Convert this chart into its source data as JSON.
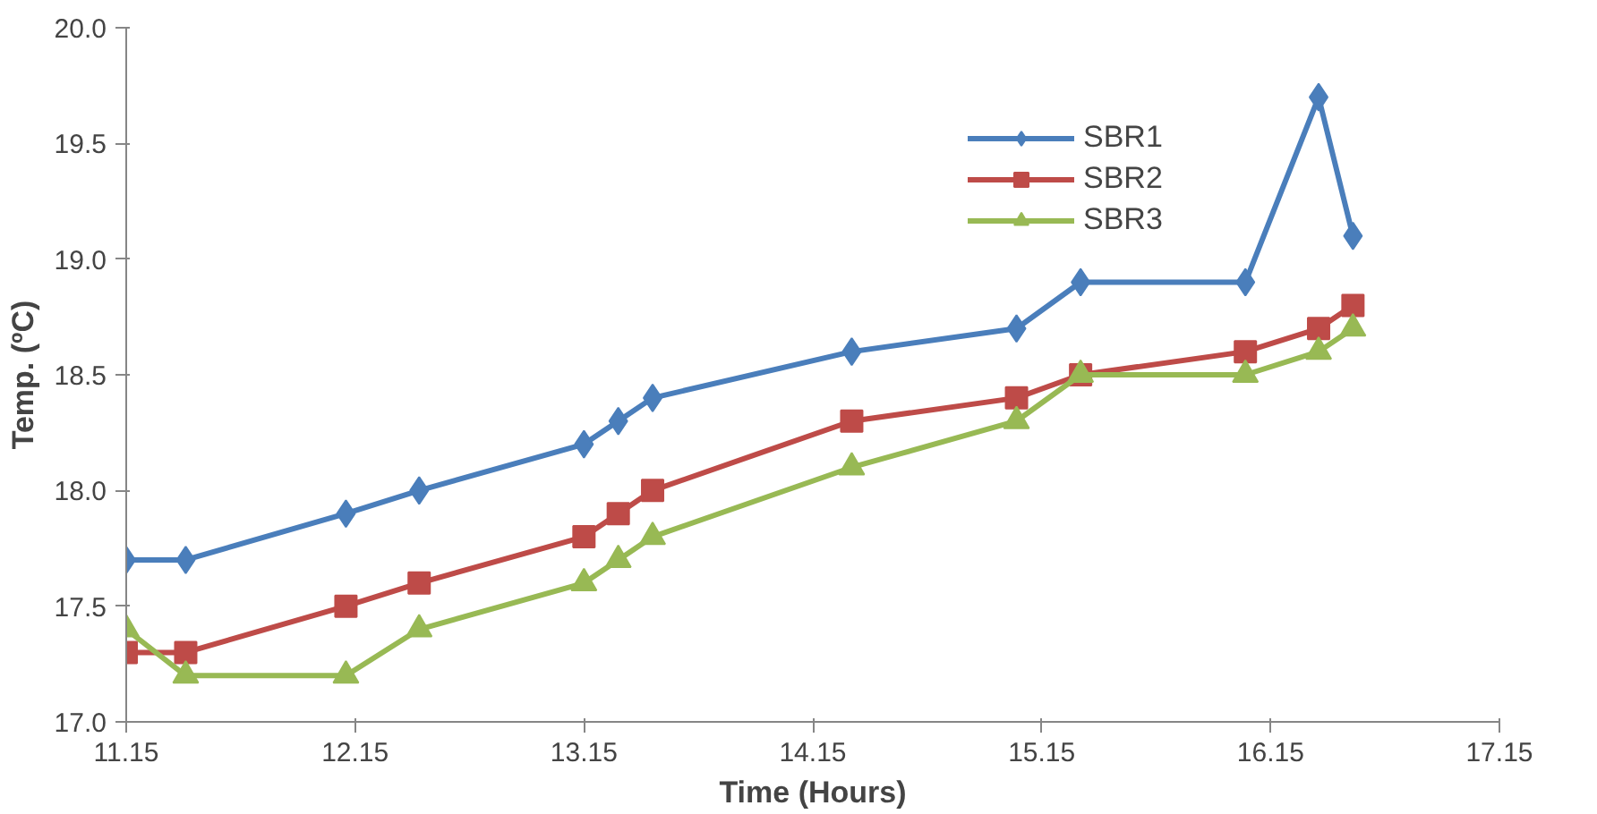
{
  "chart_data": {
    "type": "line",
    "xlabel": "Time (Hours)",
    "ylabel": "Temp. (ºC)",
    "x": [
      11.15,
      11.41,
      12.11,
      12.43,
      13.15,
      13.3,
      13.45,
      14.32,
      15.04,
      15.32,
      16.04,
      16.36,
      16.51
    ],
    "series": [
      {
        "name": "SBR1",
        "color": "#4a7ebb",
        "marker": "diamond",
        "values": [
          17.7,
          17.7,
          17.9,
          18.0,
          18.2,
          18.3,
          18.4,
          18.6,
          18.7,
          18.9,
          18.9,
          19.7,
          19.1
        ]
      },
      {
        "name": "SBR2",
        "color": "#be4b48",
        "marker": "square",
        "values": [
          17.3,
          17.3,
          17.5,
          17.6,
          17.8,
          17.9,
          18.0,
          18.3,
          18.4,
          18.5,
          18.6,
          18.7,
          18.8
        ]
      },
      {
        "name": "SBR3",
        "color": "#98b954",
        "marker": "triangle",
        "values": [
          17.4,
          17.2,
          17.2,
          17.4,
          17.6,
          17.7,
          17.8,
          18.1,
          18.3,
          18.5,
          18.5,
          18.6,
          18.7
        ]
      }
    ],
    "xlim": [
      11.15,
      17.15
    ],
    "ylim": [
      17.0,
      20.0
    ],
    "xticks": [
      11.15,
      12.15,
      13.15,
      14.15,
      15.15,
      16.15,
      17.15
    ],
    "yticks": [
      {
        "value": 17,
        "label": "17.0"
      },
      {
        "value": 17.5,
        "label": "17.5"
      },
      {
        "value": 18,
        "label": "18.0"
      },
      {
        "value": 18.5,
        "label": "18.5"
      },
      {
        "value": 19,
        "label": "19.0"
      },
      {
        "value": 19.5,
        "label": "19.5"
      },
      {
        "value": 20,
        "label": "20.0"
      }
    ],
    "grid": false,
    "legend": "top right",
    "line_style": "solid"
  }
}
